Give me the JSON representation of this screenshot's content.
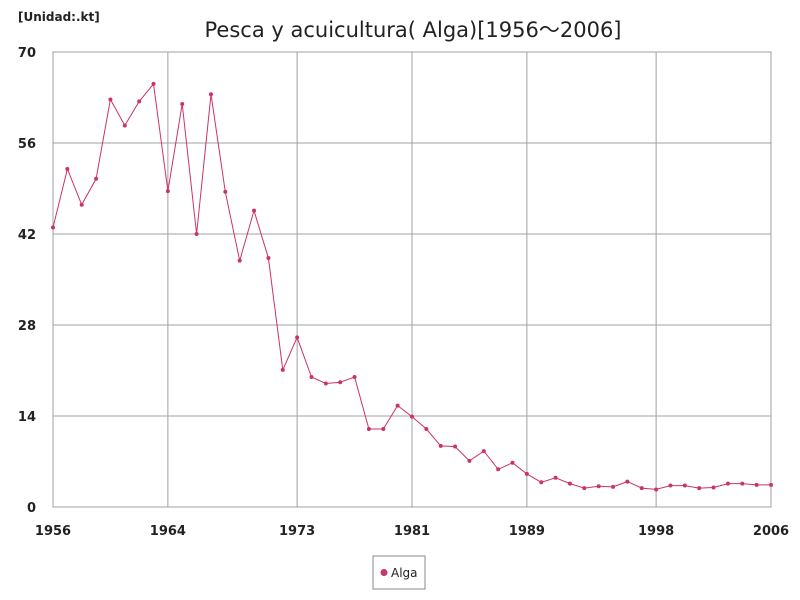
{
  "unit_label": "[Unidad:.kt]",
  "colors": {
    "series": "#cc3366",
    "grid": "#a0a0a0",
    "axis": "#707070",
    "text": "#222222"
  },
  "chart_data": {
    "type": "line",
    "title": "Pesca y acuicultura( Alga)[1956～2006]",
    "xlabel": "",
    "ylabel": "",
    "xlim": [
      1956,
      2006
    ],
    "ylim": [
      0,
      70
    ],
    "x_ticks": [
      1956,
      1964,
      1973,
      1981,
      1989,
      1998,
      2006
    ],
    "y_ticks": [
      0,
      14,
      28,
      42,
      56,
      70
    ],
    "grid": true,
    "legend": "bottom-center",
    "series": [
      {
        "name": "Alga",
        "x": [
          1956,
          1957,
          1958,
          1959,
          1960,
          1961,
          1962,
          1963,
          1964,
          1965,
          1966,
          1967,
          1968,
          1969,
          1970,
          1971,
          1972,
          1973,
          1974,
          1975,
          1976,
          1977,
          1978,
          1979,
          1980,
          1981,
          1982,
          1983,
          1984,
          1985,
          1986,
          1987,
          1988,
          1989,
          1990,
          1991,
          1992,
          1993,
          1994,
          1995,
          1996,
          1997,
          1998,
          1999,
          2000,
          2001,
          2002,
          2003,
          2004,
          2005,
          2006
        ],
        "values": [
          43.0,
          52.0,
          46.5,
          50.5,
          62.7,
          58.7,
          62.4,
          65.1,
          48.6,
          62.0,
          42.0,
          63.5,
          48.5,
          37.9,
          45.6,
          38.3,
          21.1,
          26.1,
          20.0,
          19.0,
          19.2,
          20.0,
          12.0,
          12.0,
          15.6,
          13.9,
          12.0,
          9.4,
          9.3,
          7.1,
          8.6,
          5.8,
          6.8,
          5.1,
          3.8,
          4.5,
          3.6,
          2.9,
          3.2,
          3.1,
          3.9,
          2.9,
          2.7,
          3.3,
          3.3,
          2.9,
          3.0,
          3.6,
          3.6,
          3.4,
          3.4
        ]
      }
    ]
  }
}
